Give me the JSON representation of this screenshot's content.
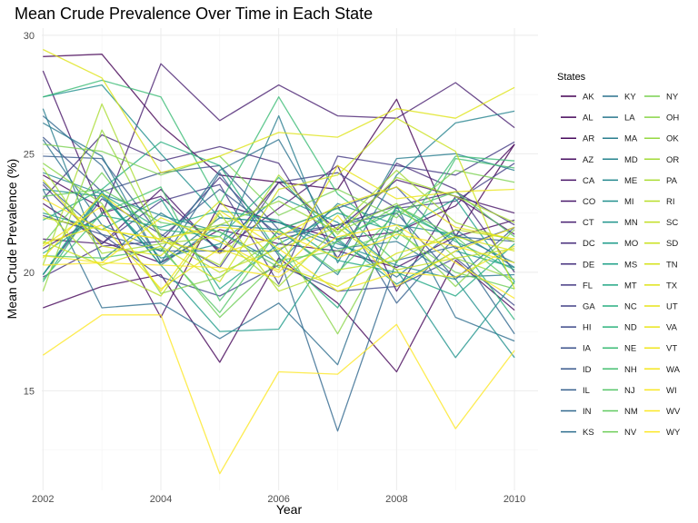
{
  "chart_data": {
    "type": "line",
    "title": "Mean Crude Prevalence Over Time in Each State",
    "xlabel": "Year",
    "ylabel": "Mean Crude Prevalence (%)",
    "xlim": [
      2001.98,
      2010.4
    ],
    "ylim": [
      10.8,
      30.3
    ],
    "x_ticks": [
      2002,
      2004,
      2006,
      2008,
      2010
    ],
    "y_ticks": [
      15,
      20,
      25,
      30
    ],
    "grid": true,
    "legend": {
      "title": "States",
      "position": "right",
      "columns": 3
    },
    "x": [
      2002,
      2003,
      2004,
      2005,
      2006,
      2007,
      2008,
      2009,
      2010
    ],
    "series": [
      {
        "name": "AK",
        "color": "#440154",
        "values": [
          29.1,
          29.2,
          26.2,
          24.1,
          23.8,
          23.5,
          27.3,
          21.5,
          25.4
        ]
      },
      {
        "name": "AL",
        "color": "#450559",
        "values": [
          18.5,
          19.4,
          19.9,
          16.2,
          20.6,
          18.7,
          15.8,
          20.5,
          18.4
        ]
      },
      {
        "name": "AR",
        "color": "#46085c",
        "values": [
          24.1,
          22.7,
          18.1,
          22.9,
          22.1,
          21.4,
          21.7,
          22.8,
          25.4
        ]
      },
      {
        "name": "AZ",
        "color": "#470e61",
        "values": [
          22.9,
          21.3,
          20.4,
          21.8,
          21.2,
          20.9,
          20.2,
          21.5,
          22.2
        ]
      },
      {
        "name": "CA",
        "color": "#481568",
        "values": [
          28.5,
          22.5,
          23.2,
          20.9,
          22.7,
          24.5,
          19.2,
          23.2,
          22.5
        ]
      },
      {
        "name": "CO",
        "color": "#48186a",
        "values": [
          21.4,
          21.2,
          23.5,
          20.8,
          23.8,
          21.8,
          23.9,
          23.2,
          21.6
        ]
      },
      {
        "name": "CT",
        "color": "#481f70",
        "values": [
          21.0,
          22.4,
          28.8,
          26.4,
          27.9,
          26.6,
          26.5,
          28.0,
          26.1
        ]
      },
      {
        "name": "DC",
        "color": "#472d7b",
        "values": [
          23.1,
          25.8,
          24.7,
          25.3,
          24.6,
          20.6,
          24.6,
          23.5,
          20.0
        ]
      },
      {
        "name": "DE",
        "color": "#46307e",
        "values": [
          19.8,
          21.1,
          21.3,
          24.0,
          21.4,
          22.0,
          22.8,
          23.4,
          22.0
        ]
      },
      {
        "name": "FL",
        "color": "#443a83",
        "values": [
          23.7,
          21.2,
          23.0,
          23.7,
          19.5,
          24.9,
          24.5,
          24.1,
          25.5
        ]
      },
      {
        "name": "GA",
        "color": "#424086",
        "values": [
          19.9,
          23.1,
          21.6,
          20.2,
          23.8,
          24.2,
          22.7,
          23.0,
          24.6
        ]
      },
      {
        "name": "HI",
        "color": "#3e4989",
        "values": [
          22.4,
          21.6,
          19.8,
          19.0,
          20.3,
          19.2,
          19.4,
          20.6,
          18.6
        ]
      },
      {
        "name": "IA",
        "color": "#3b528b",
        "values": [
          25.7,
          23.4,
          24.2,
          24.5,
          21.8,
          22.7,
          23.6,
          21.0,
          21.9
        ]
      },
      {
        "name": "ID",
        "color": "#38598c",
        "values": [
          24.9,
          24.8,
          21.5,
          23.5,
          21.6,
          22.0,
          22.5,
          19.7,
          21.9
        ]
      },
      {
        "name": "IL",
        "color": "#355f8d",
        "values": [
          23.8,
          21.6,
          20.9,
          20.9,
          20.9,
          22.8,
          18.7,
          21.5,
          21.3
        ]
      },
      {
        "name": "IN",
        "color": "#31688e",
        "values": [
          26.6,
          24.5,
          20.4,
          24.2,
          20.7,
          13.3,
          20.5,
          21.1,
          17.4
        ]
      },
      {
        "name": "KS",
        "color": "#2e6e8e",
        "values": [
          23.5,
          18.5,
          18.7,
          17.2,
          18.7,
          16.1,
          22.8,
          18.1,
          17.1
        ]
      },
      {
        "name": "KY",
        "color": "#2c728e",
        "values": [
          25.6,
          22.0,
          20.9,
          24.3,
          25.6,
          21.3,
          19.8,
          21.8,
          20.2
        ]
      },
      {
        "name": "LA",
        "color": "#2a788e",
        "values": [
          26.3,
          24.9,
          20.4,
          22.3,
          22.1,
          21.0,
          21.3,
          19.8,
          19.9
        ]
      },
      {
        "name": "MA",
        "color": "#287d8e",
        "values": [
          26.9,
          20.5,
          22.5,
          21.0,
          26.6,
          20.4,
          24.8,
          25.0,
          24.3
        ]
      },
      {
        "name": "MD",
        "color": "#25838e",
        "values": [
          19.9,
          23.3,
          20.3,
          22.0,
          21.8,
          19.9,
          24.1,
          26.3,
          26.8
        ]
      },
      {
        "name": "ME",
        "color": "#23888e",
        "values": [
          24.2,
          23.3,
          22.4,
          21.7,
          20.4,
          22.9,
          22.0,
          21.6,
          20.4
        ]
      },
      {
        "name": "MI",
        "color": "#21908d",
        "values": [
          27.4,
          27.9,
          25.0,
          22.3,
          22.1,
          21.2,
          20.3,
          19.7,
          16.4
        ]
      },
      {
        "name": "MN",
        "color": "#1f948c",
        "values": [
          23.5,
          23.2,
          20.6,
          21.2,
          23.2,
          22.1,
          20.1,
          16.4,
          19.6
        ]
      },
      {
        "name": "MO",
        "color": "#1e9b8a",
        "values": [
          19.9,
          23.4,
          20.3,
          17.5,
          17.6,
          21.4,
          19.5,
          20.9,
          20.2
        ]
      },
      {
        "name": "MS",
        "color": "#1fa088",
        "values": [
          22.5,
          21.8,
          23.1,
          19.3,
          21.2,
          22.5,
          21.7,
          23.1,
          19.6
        ]
      },
      {
        "name": "MT",
        "color": "#22a785",
        "values": [
          20.8,
          22.4,
          21.9,
          22.6,
          22.2,
          20.5,
          20.0,
          19.0,
          21.2
        ]
      },
      {
        "name": "NC",
        "color": "#28ae80",
        "values": [
          22.2,
          23.5,
          25.5,
          24.5,
          20.8,
          18.5,
          22.8,
          21.3,
          20.1
        ]
      },
      {
        "name": "ND",
        "color": "#2db27d",
        "values": [
          19.6,
          23.3,
          21.8,
          21.5,
          24.0,
          21.4,
          22.6,
          21.4,
          18.0
        ]
      },
      {
        "name": "NE",
        "color": "#3bbb75",
        "values": [
          27.4,
          28.1,
          27.4,
          22.9,
          27.4,
          23.3,
          21.4,
          24.9,
          24.7
        ]
      },
      {
        "name": "NH",
        "color": "#45bf70",
        "values": [
          19.7,
          22.5,
          23.6,
          18.8,
          21.8,
          22.7,
          20.4,
          24.8,
          24.4
        ]
      },
      {
        "name": "NJ",
        "color": "#54c568",
        "values": [
          20.7,
          20.6,
          21.0,
          18.3,
          21.8,
          20.0,
          22.5,
          23.4,
          21.5
        ]
      },
      {
        "name": "NM",
        "color": "#60ca60",
        "values": [
          23.2,
          23.5,
          22.1,
          21.7,
          20.2,
          21.3,
          22.8,
          21.5,
          19.5
        ]
      },
      {
        "name": "NV",
        "color": "#6ece58",
        "values": [
          21.2,
          24.2,
          21.1,
          18.1,
          20.5,
          20.9,
          21.7,
          20.0,
          19.3
        ]
      },
      {
        "name": "NY",
        "color": "#7ad151",
        "values": [
          25.4,
          25.1,
          24.1,
          24.9,
          22.4,
          23.5,
          22.3,
          24.3,
          23.8
        ]
      },
      {
        "name": "OH",
        "color": "#89d548",
        "values": [
          24.6,
          22.9,
          19.1,
          19.8,
          21.5,
          17.4,
          21.9,
          19.4,
          21.8
        ]
      },
      {
        "name": "OK",
        "color": "#95d840",
        "values": [
          19.2,
          26.0,
          21.4,
          22.0,
          23.0,
          21.7,
          22.9,
          20.6,
          19.7
        ]
      },
      {
        "name": "OR",
        "color": "#a2da37",
        "values": [
          24.4,
          20.8,
          21.2,
          21.5,
          19.4,
          21.9,
          24.3,
          22.1,
          21.3
        ]
      },
      {
        "name": "PA",
        "color": "#aadc32",
        "values": [
          20.3,
          27.1,
          21.5,
          20.3,
          24.1,
          21.6,
          24.0,
          23.2,
          22.1
        ]
      },
      {
        "name": "RI",
        "color": "#b8de29",
        "values": [
          22.7,
          20.2,
          19.0,
          22.5,
          19.2,
          20.1,
          20.5,
          21.8,
          21.4
        ]
      },
      {
        "name": "SC",
        "color": "#c2df23",
        "values": [
          22.3,
          21.8,
          21.4,
          20.0,
          21.0,
          21.9,
          20.1,
          20.6,
          21.0
        ]
      },
      {
        "name": "SD",
        "color": "#cae11f",
        "values": [
          21.3,
          20.3,
          21.1,
          19.6,
          23.5,
          24.1,
          26.5,
          25.1,
          19.3
        ]
      },
      {
        "name": "TN",
        "color": "#d5e21a",
        "values": [
          23.9,
          21.1,
          20.7,
          23.0,
          20.3,
          19.4,
          20.8,
          21.5,
          20.9
        ]
      },
      {
        "name": "TX",
        "color": "#dfe318",
        "values": [
          29.4,
          28.2,
          24.2,
          24.9,
          25.9,
          25.7,
          26.9,
          26.5,
          27.8
        ]
      },
      {
        "name": "UT",
        "color": "#e7e419",
        "values": [
          20.6,
          23.3,
          21.3,
          20.8,
          21.5,
          22.8,
          23.6,
          21.9,
          21.4
        ]
      },
      {
        "name": "VA",
        "color": "#eae51a",
        "values": [
          21.2,
          22.0,
          19.3,
          21.0,
          20.1,
          24.5,
          23.1,
          23.4,
          23.5
        ]
      },
      {
        "name": "VT",
        "color": "#f0e51c",
        "values": [
          21.1,
          22.8,
          19.2,
          22.6,
          21.0,
          19.2,
          20.0,
          19.8,
          21.1
        ]
      },
      {
        "name": "WA",
        "color": "#f4e61e",
        "values": [
          20.7,
          20.4,
          22.3,
          21.3,
          20.0,
          22.4,
          19.4,
          20.9,
          21.9
        ]
      },
      {
        "name": "WI",
        "color": "#f8e621",
        "values": [
          23.1,
          21.8,
          21.4,
          21.9,
          21.7,
          20.6,
          21.6,
          21.1,
          20.4
        ]
      },
      {
        "name": "WV",
        "color": "#fbe723",
        "values": [
          20.3,
          20.4,
          20.3,
          20.2,
          19.8,
          21.5,
          22.0,
          20.4,
          18.9
        ]
      },
      {
        "name": "WY",
        "color": "#fde725",
        "values": [
          16.5,
          18.2,
          18.2,
          11.5,
          15.8,
          15.7,
          17.8,
          13.4,
          16.7
        ]
      }
    ]
  }
}
